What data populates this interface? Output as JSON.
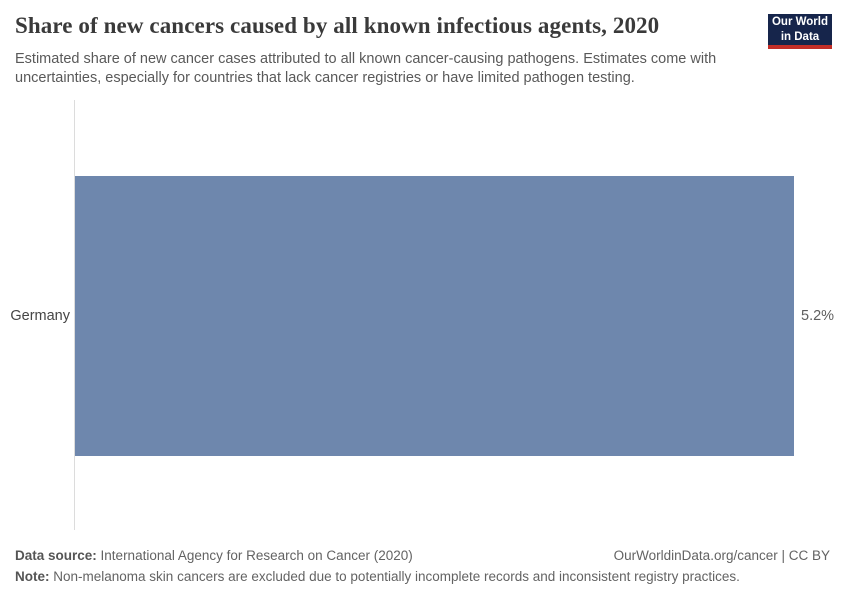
{
  "header": {
    "title": "Share of new cancers caused by all known infectious agents, 2020",
    "subtitle": "Estimated share of new cancer cases attributed to all known cancer-causing pathogens. Estimates come with uncertainties, especially for countries that lack cancer registries or have limited pathogen testing.",
    "logo": {
      "line1": "Our World",
      "line2": "in Data"
    }
  },
  "chart_data": {
    "type": "bar",
    "orientation": "horizontal",
    "categories": [
      "Germany"
    ],
    "values": [
      5.2
    ],
    "value_labels": [
      "5.2%"
    ],
    "unit": "%",
    "xlim": [
      0,
      5.2
    ],
    "grid": false,
    "legend": "none",
    "bar_color": "#6e87ad",
    "title": "Share of new cancers caused by all known infectious agents, 2020",
    "xlabel": "",
    "ylabel": ""
  },
  "footer": {
    "datasource_label": "Data source:",
    "datasource_value": "International Agency for Research on Cancer (2020)",
    "credit": "OurWorldinData.org/cancer | CC BY",
    "note_label": "Note:",
    "note_value": "Non-melanoma skin cancers are excluded due to potentially incomplete records and inconsistent registry practices."
  },
  "colors": {
    "bar": "#6e87ad",
    "logo_background": "#16254b",
    "logo_accent": "#c32e27",
    "axis_line": "#dcdcdc"
  }
}
